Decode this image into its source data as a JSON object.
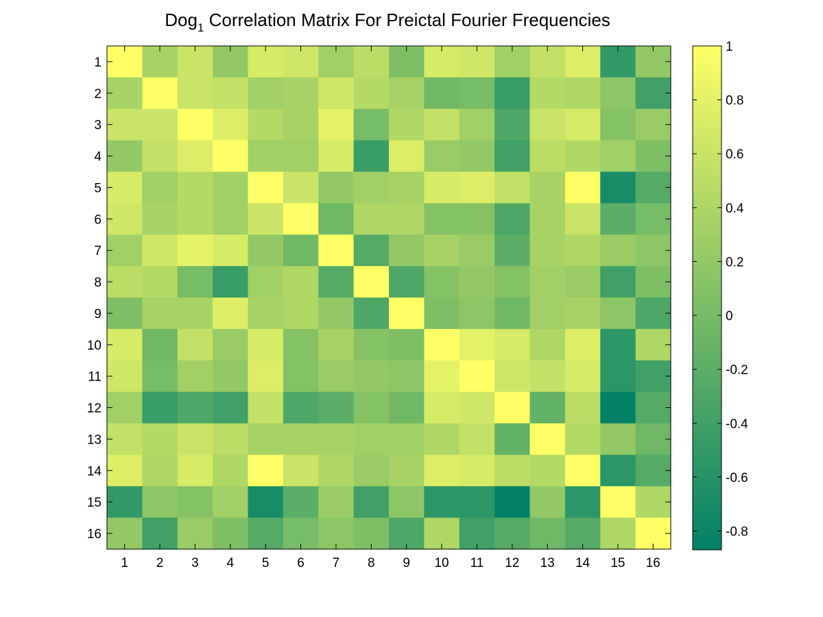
{
  "chart_data": {
    "type": "heatmap",
    "title": {
      "prefix": "Dog",
      "subscript": "1",
      "suffix": " Correlation Matrix For Preictal Fourier Frequencies"
    },
    "xlabel": "",
    "ylabel": "",
    "x_categories": [
      "1",
      "2",
      "3",
      "4",
      "5",
      "6",
      "7",
      "8",
      "9",
      "10",
      "11",
      "12",
      "13",
      "14",
      "15",
      "16"
    ],
    "y_categories": [
      "1",
      "2",
      "3",
      "4",
      "5",
      "6",
      "7",
      "8",
      "9",
      "10",
      "11",
      "12",
      "13",
      "14",
      "15",
      "16"
    ],
    "matrix": [
      [
        1.0,
        0.35,
        0.6,
        0.2,
        0.7,
        0.65,
        0.3,
        0.5,
        0.05,
        0.7,
        0.65,
        0.3,
        0.55,
        0.75,
        -0.5,
        0.2
      ],
      [
        0.35,
        1.0,
        0.6,
        0.55,
        0.3,
        0.35,
        0.65,
        0.45,
        0.35,
        -0.05,
        0.0,
        -0.45,
        0.45,
        0.4,
        0.15,
        -0.4
      ],
      [
        0.6,
        0.6,
        1.0,
        0.75,
        0.45,
        0.35,
        0.8,
        0.0,
        0.4,
        0.55,
        0.3,
        -0.3,
        0.6,
        0.7,
        0.1,
        0.25
      ],
      [
        0.2,
        0.55,
        0.75,
        1.0,
        0.3,
        0.3,
        0.7,
        -0.45,
        0.75,
        0.25,
        0.2,
        -0.4,
        0.5,
        0.4,
        0.3,
        0.05
      ],
      [
        0.7,
        0.3,
        0.45,
        0.3,
        1.0,
        0.6,
        0.2,
        0.3,
        0.35,
        0.7,
        0.75,
        0.55,
        0.35,
        1.0,
        -0.7,
        -0.25
      ],
      [
        0.65,
        0.35,
        0.45,
        0.3,
        0.6,
        1.0,
        -0.05,
        0.4,
        0.4,
        0.1,
        0.1,
        -0.3,
        0.35,
        0.6,
        -0.2,
        0.0
      ],
      [
        0.3,
        0.65,
        0.8,
        0.7,
        0.2,
        -0.05,
        1.0,
        -0.25,
        0.2,
        0.35,
        0.25,
        -0.2,
        0.35,
        0.4,
        0.25,
        0.15
      ],
      [
        0.5,
        0.45,
        0.0,
        -0.45,
        0.3,
        0.4,
        -0.25,
        1.0,
        -0.3,
        0.1,
        0.2,
        0.1,
        0.3,
        0.25,
        -0.4,
        0.05
      ],
      [
        0.05,
        0.35,
        0.35,
        0.75,
        0.35,
        0.4,
        0.2,
        -0.3,
        1.0,
        0.05,
        0.15,
        -0.05,
        0.3,
        0.35,
        0.15,
        -0.3
      ],
      [
        0.7,
        -0.05,
        0.55,
        0.25,
        0.7,
        0.1,
        0.35,
        0.1,
        0.05,
        1.0,
        0.8,
        0.7,
        0.4,
        0.75,
        -0.55,
        0.4
      ],
      [
        0.65,
        0.0,
        0.3,
        0.2,
        0.75,
        0.1,
        0.25,
        0.2,
        0.15,
        0.8,
        1.0,
        0.65,
        0.55,
        0.7,
        -0.55,
        -0.4
      ],
      [
        0.3,
        -0.45,
        -0.3,
        -0.4,
        0.55,
        -0.3,
        -0.2,
        0.1,
        -0.05,
        0.7,
        0.65,
        1.0,
        -0.15,
        0.5,
        -0.85,
        -0.25
      ],
      [
        0.55,
        0.45,
        0.6,
        0.5,
        0.35,
        0.35,
        0.35,
        0.3,
        0.3,
        0.4,
        0.55,
        -0.15,
        1.0,
        0.45,
        0.2,
        -0.05
      ],
      [
        0.75,
        0.4,
        0.7,
        0.4,
        1.0,
        0.6,
        0.4,
        0.25,
        0.35,
        0.75,
        0.7,
        0.5,
        0.45,
        1.0,
        -0.55,
        -0.25
      ],
      [
        -0.5,
        0.15,
        0.1,
        0.3,
        -0.7,
        -0.2,
        0.25,
        -0.4,
        0.15,
        -0.55,
        -0.55,
        -0.85,
        0.2,
        -0.55,
        1.0,
        0.4
      ],
      [
        0.2,
        -0.4,
        0.25,
        0.05,
        -0.25,
        0.0,
        0.15,
        0.05,
        -0.3,
        0.4,
        -0.4,
        -0.25,
        -0.05,
        -0.25,
        0.4,
        1.0
      ]
    ],
    "colorbar": {
      "range": [
        -0.87,
        1.0
      ],
      "ticks": [
        1,
        0.8,
        0.6,
        0.4,
        0.2,
        0,
        -0.2,
        -0.4,
        -0.6,
        -0.8
      ],
      "tick_labels": [
        "1",
        "0.8",
        "0.6",
        "0.4",
        "0.2",
        "0",
        "-0.2",
        "-0.4",
        "-0.6",
        "-0.8"
      ],
      "colormap": [
        "#008066",
        "#80c066",
        "#ffff66"
      ]
    },
    "grid": false,
    "legend": "none"
  }
}
